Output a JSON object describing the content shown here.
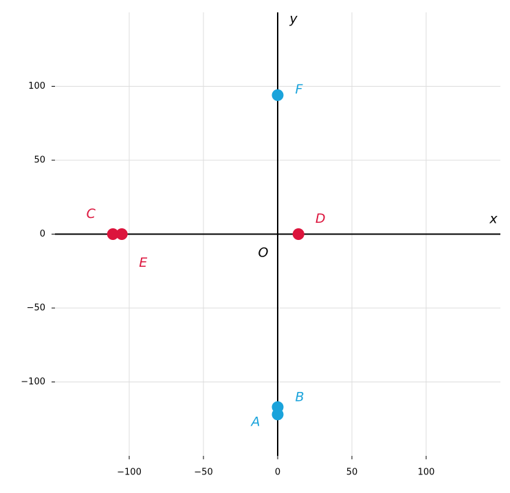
{
  "chart_data": {
    "type": "scatter",
    "x_label": "x",
    "y_label": "y",
    "origin_label": "O",
    "xlim": [
      -150,
      150
    ],
    "ylim": [
      -150,
      150
    ],
    "xticks": [
      {
        "value": -100,
        "label": "−100"
      },
      {
        "value": -50,
        "label": "−50"
      },
      0,
      50,
      100
    ],
    "yticks": [
      {
        "value": -100,
        "label": "−100"
      },
      {
        "value": -50,
        "label": "−50"
      },
      0,
      50,
      100
    ],
    "grid": true,
    "series": [
      {
        "color": "#1aa3db",
        "labels": [
          "A",
          "B",
          "F"
        ],
        "x": [
          0,
          0,
          0
        ],
        "values": [
          -122,
          -117,
          94
        ]
      },
      {
        "color": "#dc143c",
        "labels": [
          "C",
          "D",
          "E"
        ],
        "x": [
          -111,
          14,
          -105
        ],
        "values": [
          0,
          0,
          0
        ]
      }
    ]
  }
}
